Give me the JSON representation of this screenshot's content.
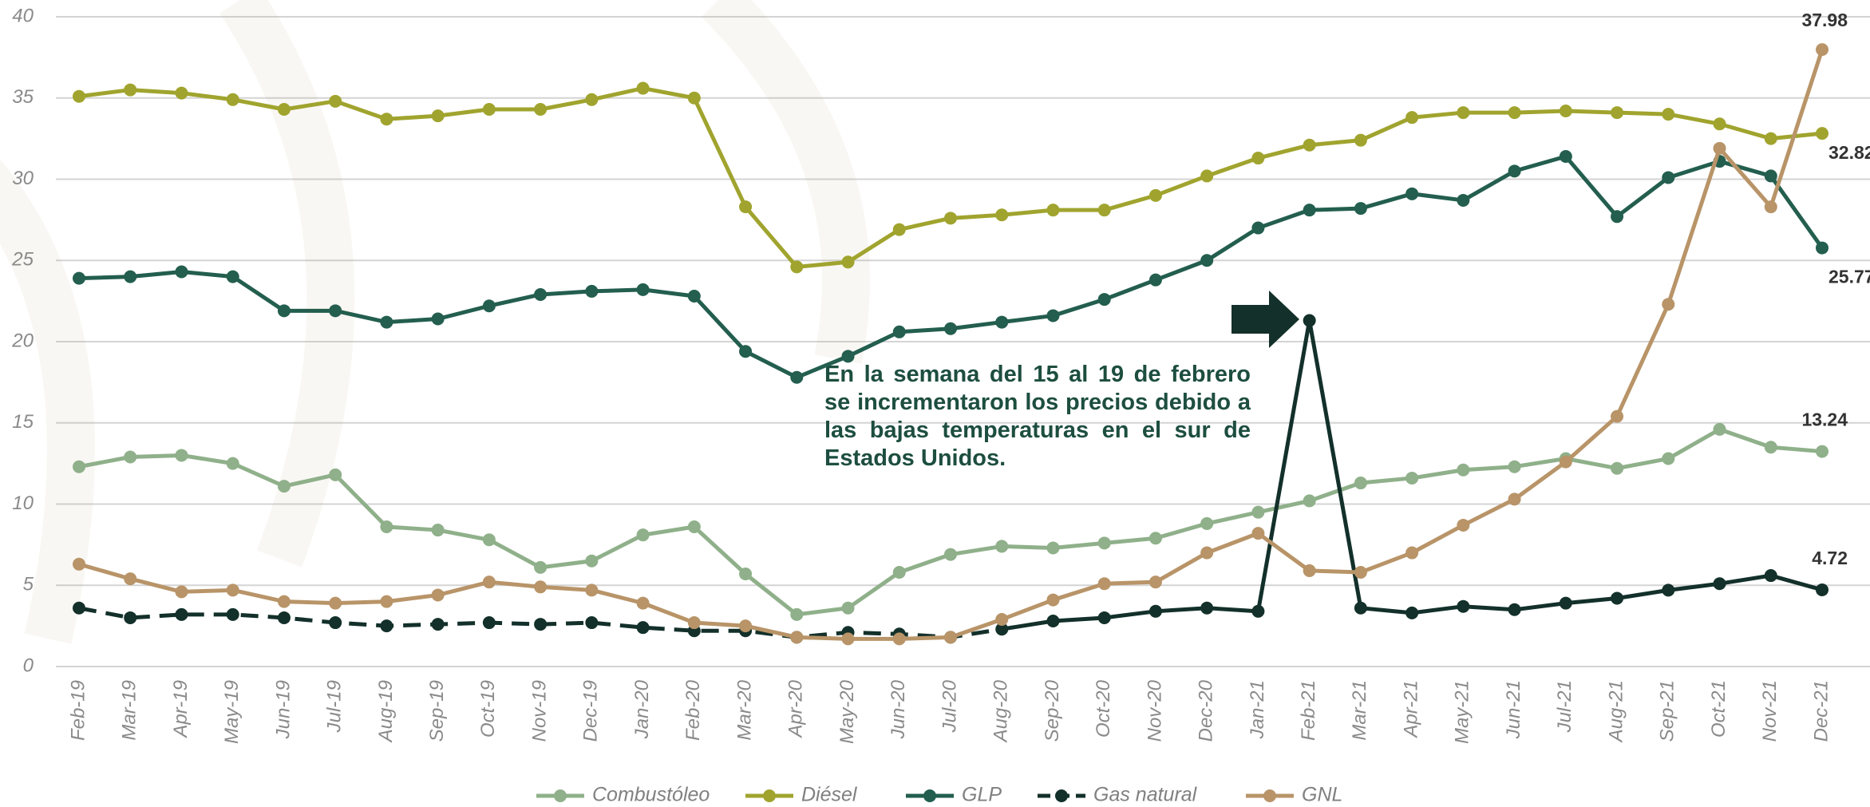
{
  "chart_data": {
    "type": "line",
    "annotation": "En la semana del 15 al 19 de febrero se incrementaron los precios debido a las bajas temperaturas en el sur de Estados Unidos.",
    "categories": [
      "Feb-19",
      "Mar-19",
      "Apr-19",
      "May-19",
      "Jun-19",
      "Jul-19",
      "Aug-19",
      "Sep-19",
      "Oct-19",
      "Nov-19",
      "Dec-19",
      "Jan-20",
      "Feb-20",
      "Mar-20",
      "Apr-20",
      "May-20",
      "Jun-20",
      "Jul-20",
      "Aug-20",
      "Sep-20",
      "Oct-20",
      "Nov-20",
      "Dec-20",
      "Jan-21",
      "Feb-21",
      "Mar-21",
      "Apr-21",
      "May-21",
      "Jun-21",
      "Jul-21",
      "Aug-21",
      "Sep-21",
      "Oct-21",
      "Nov-21",
      "Dec-21"
    ],
    "series": [
      {
        "name": "Combustóleo",
        "color": "#8fb08a",
        "values": [
          12.3,
          12.9,
          13.0,
          12.5,
          11.1,
          11.8,
          8.6,
          8.4,
          7.8,
          6.1,
          6.5,
          8.1,
          8.6,
          5.7,
          3.2,
          3.6,
          5.8,
          6.9,
          7.4,
          7.3,
          7.6,
          7.9,
          8.8,
          9.5,
          10.2,
          11.3,
          11.6,
          12.1,
          12.3,
          12.8,
          12.2,
          12.8,
          14.6,
          13.5,
          13.24
        ]
      },
      {
        "name": "Diésel",
        "color": "#a0a42e",
        "values": [
          35.1,
          35.5,
          35.3,
          34.9,
          34.3,
          34.8,
          33.7,
          33.9,
          34.3,
          34.3,
          34.9,
          35.6,
          35.0,
          28.3,
          24.6,
          24.9,
          26.9,
          27.6,
          27.8,
          28.1,
          28.1,
          29.0,
          30.2,
          31.3,
          32.1,
          32.4,
          33.8,
          34.1,
          34.1,
          34.2,
          34.1,
          34.0,
          33.4,
          32.5,
          32.82
        ]
      },
      {
        "name": "GLP",
        "color": "#235e4e",
        "values": [
          23.9,
          24.0,
          24.3,
          24.0,
          21.9,
          21.9,
          21.2,
          21.4,
          22.2,
          22.9,
          23.1,
          23.2,
          22.8,
          19.4,
          17.8,
          19.1,
          20.6,
          20.8,
          21.2,
          21.6,
          22.6,
          23.8,
          25.0,
          27.0,
          28.1,
          28.2,
          29.1,
          28.7,
          30.5,
          31.4,
          27.7,
          30.1,
          31.1,
          30.2,
          25.77
        ]
      },
      {
        "name": "Gas natural",
        "color": "#13302a",
        "values": [
          3.6,
          3.0,
          3.2,
          3.2,
          3.0,
          2.7,
          2.5,
          2.6,
          2.7,
          2.6,
          2.7,
          2.4,
          2.2,
          2.2,
          1.8,
          2.1,
          2.0,
          1.8,
          2.3,
          2.8,
          3.0,
          3.4,
          3.6,
          3.4,
          21.3,
          3.6,
          3.3,
          3.7,
          3.5,
          3.9,
          4.2,
          4.7,
          5.1,
          5.6,
          4.72
        ]
      },
      {
        "name": "GNL",
        "color": "#b89468",
        "values": [
          6.3,
          5.4,
          4.6,
          4.7,
          4.0,
          3.9,
          4.0,
          4.4,
          5.2,
          4.9,
          4.7,
          3.9,
          2.7,
          2.5,
          1.8,
          1.7,
          1.7,
          1.8,
          2.9,
          4.1,
          5.1,
          5.2,
          7.0,
          8.2,
          5.9,
          5.8,
          7.0,
          8.7,
          10.3,
          12.6,
          15.4,
          22.3,
          31.9,
          28.3,
          37.98
        ]
      }
    ],
    "ylim": [
      0,
      40
    ],
    "yticks": [
      0,
      5,
      10,
      15,
      20,
      25,
      30,
      35,
      40
    ],
    "grid": true
  }
}
